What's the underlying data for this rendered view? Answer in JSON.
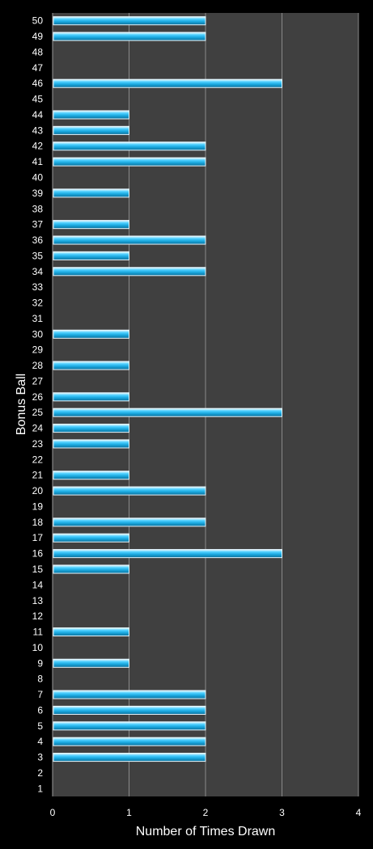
{
  "chart_data": {
    "type": "bar",
    "orientation": "horizontal",
    "xlabel": "Number of Times Drawn",
    "ylabel": "Bonus Ball",
    "xlim": [
      0,
      4
    ],
    "x_ticks": [
      "0",
      "1",
      "2",
      "3",
      "4"
    ],
    "grid": true,
    "categories": [
      "1",
      "2",
      "3",
      "4",
      "5",
      "6",
      "7",
      "8",
      "9",
      "10",
      "11",
      "12",
      "13",
      "14",
      "15",
      "16",
      "17",
      "18",
      "19",
      "20",
      "21",
      "22",
      "23",
      "24",
      "25",
      "26",
      "27",
      "28",
      "29",
      "30",
      "31",
      "32",
      "33",
      "34",
      "35",
      "36",
      "37",
      "38",
      "39",
      "40",
      "41",
      "42",
      "43",
      "44",
      "45",
      "46",
      "47",
      "48",
      "49",
      "50"
    ],
    "values": [
      0,
      0,
      2,
      2,
      2,
      2,
      2,
      0,
      1,
      0,
      1,
      0,
      0,
      0,
      1,
      3,
      1,
      2,
      0,
      2,
      1,
      0,
      1,
      1,
      3,
      1,
      0,
      1,
      0,
      1,
      0,
      0,
      0,
      2,
      1,
      2,
      1,
      0,
      1,
      0,
      2,
      2,
      1,
      1,
      0,
      3,
      0,
      0,
      2,
      2
    ]
  },
  "colors": {
    "background": "#000000",
    "plot_area": "#404040",
    "gridline": "#8a8a8a",
    "bar_fill": "#1fb2e6",
    "bar_edge": "#e6f7ff",
    "text": "#ffffff"
  }
}
